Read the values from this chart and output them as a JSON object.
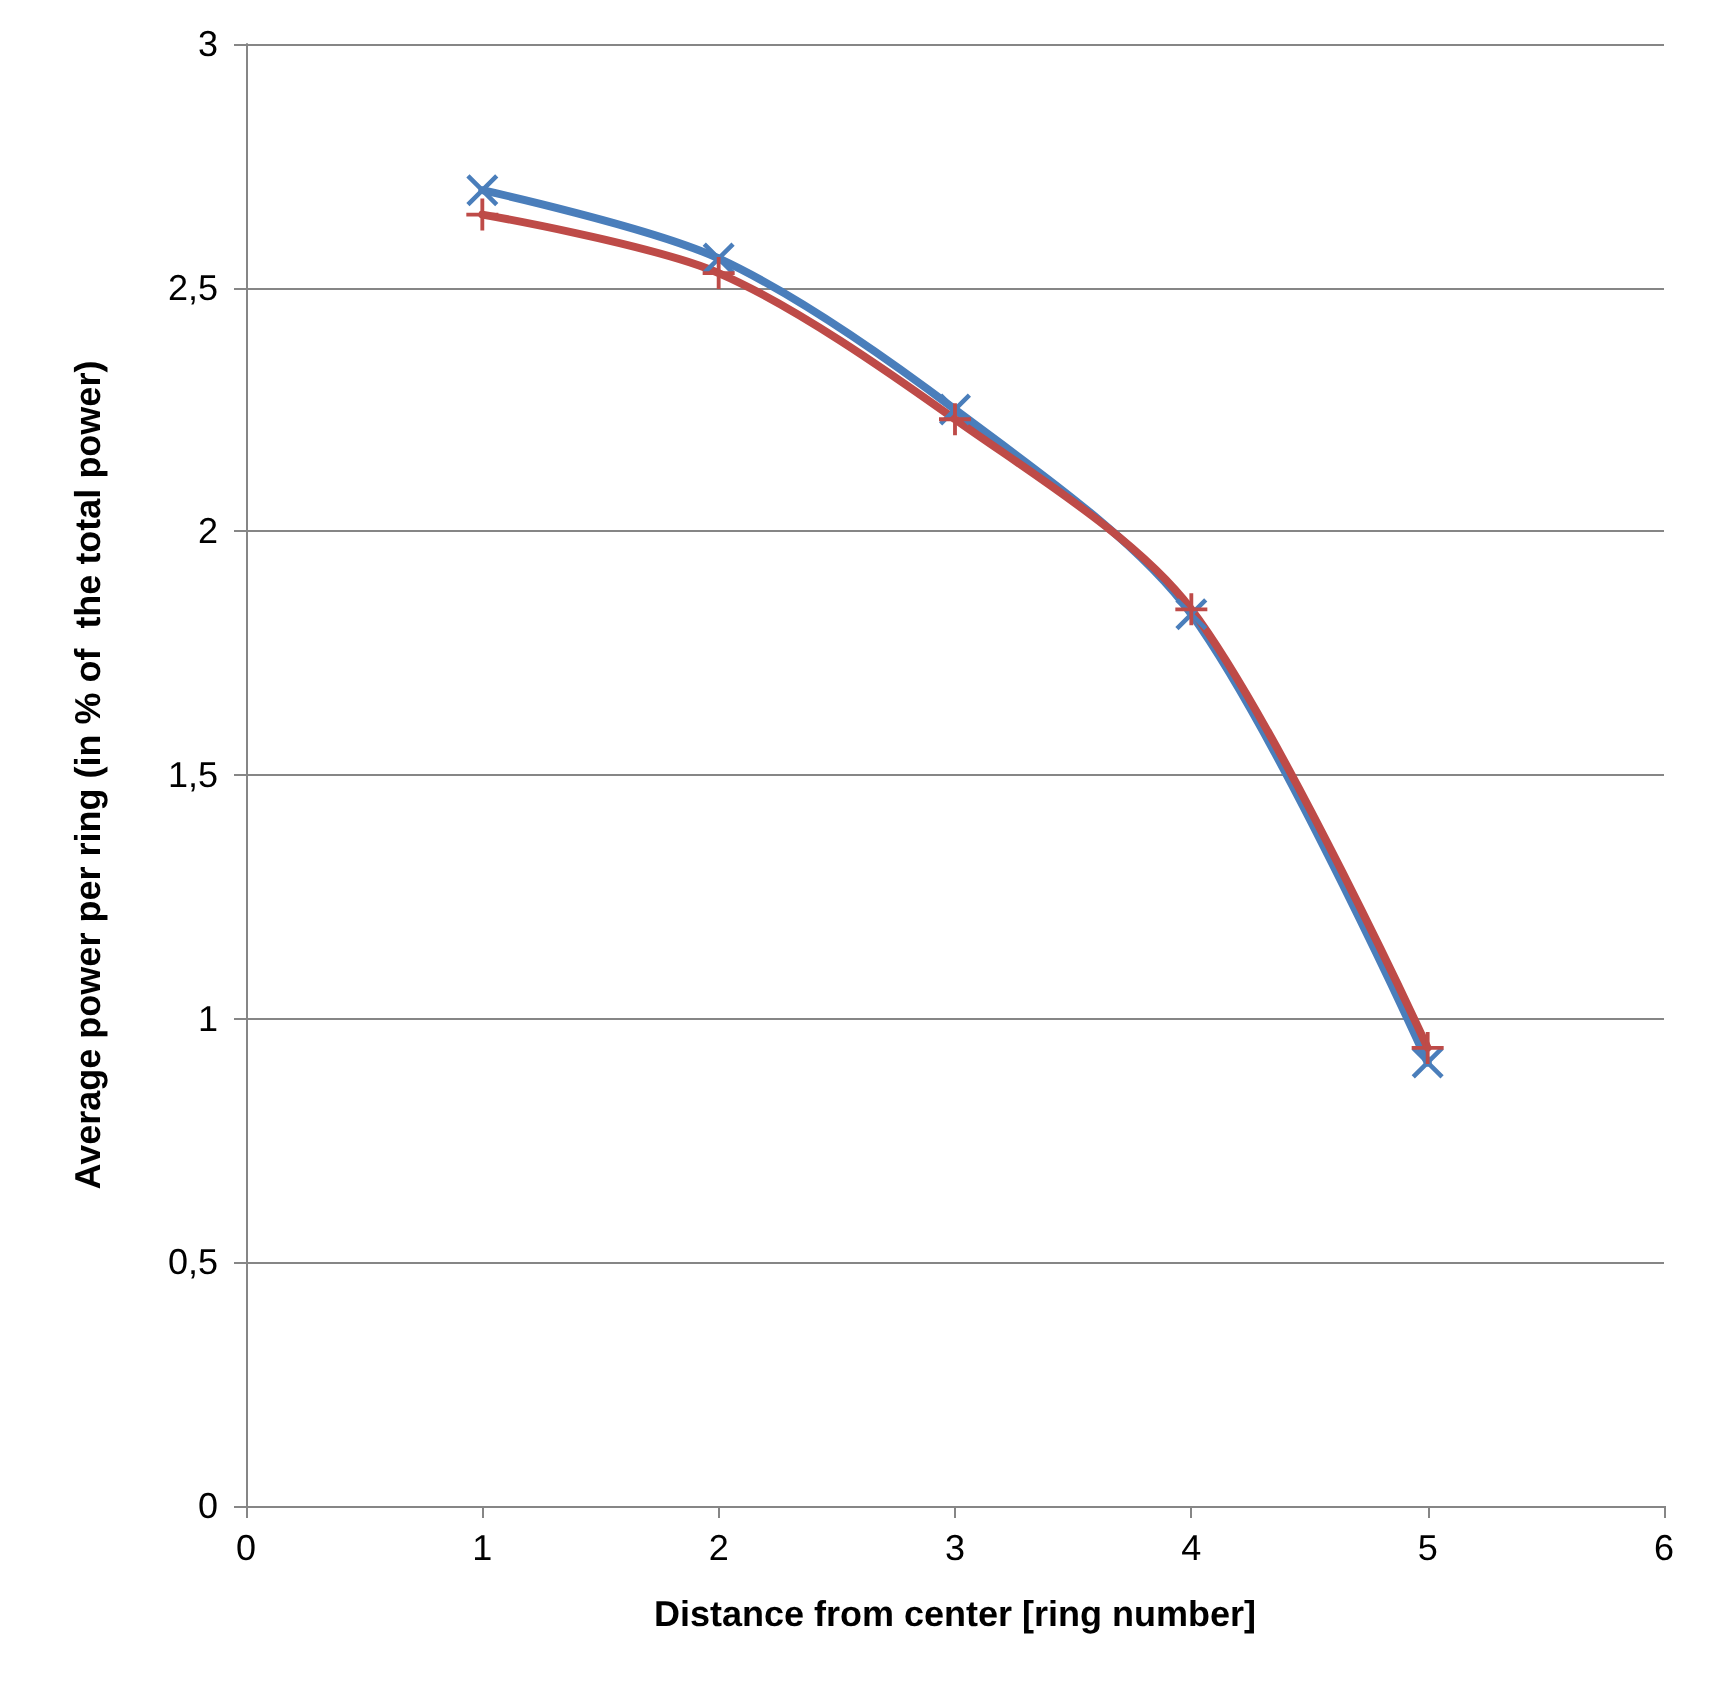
{
  "chart_data": {
    "type": "line",
    "xlabel": "Distance from center [ring number]",
    "ylabel": "Average power per ring (in % of  the total power)",
    "x": [
      1,
      2,
      3,
      4,
      5
    ],
    "series": [
      {
        "color": "#4a7ebb",
        "values": [
          2.7,
          2.56,
          2.25,
          1.83,
          0.91
        ],
        "marker": "cross"
      },
      {
        "color": "#be4b48",
        "values": [
          2.65,
          2.53,
          2.23,
          1.84,
          0.94
        ],
        "marker": "plus"
      }
    ],
    "xlim": [
      0,
      6
    ],
    "xticks": [
      0,
      1,
      2,
      3,
      4,
      5,
      6
    ],
    "ylim": [
      0,
      3
    ],
    "yticks": [
      0,
      {
        "value": 0.5,
        "label": "0,5"
      },
      1,
      {
        "value": 1.5,
        "label": "1,5"
      },
      2,
      {
        "value": 2.5,
        "label": "2,5"
      },
      3
    ],
    "grid": "y",
    "line_style": "solid"
  }
}
